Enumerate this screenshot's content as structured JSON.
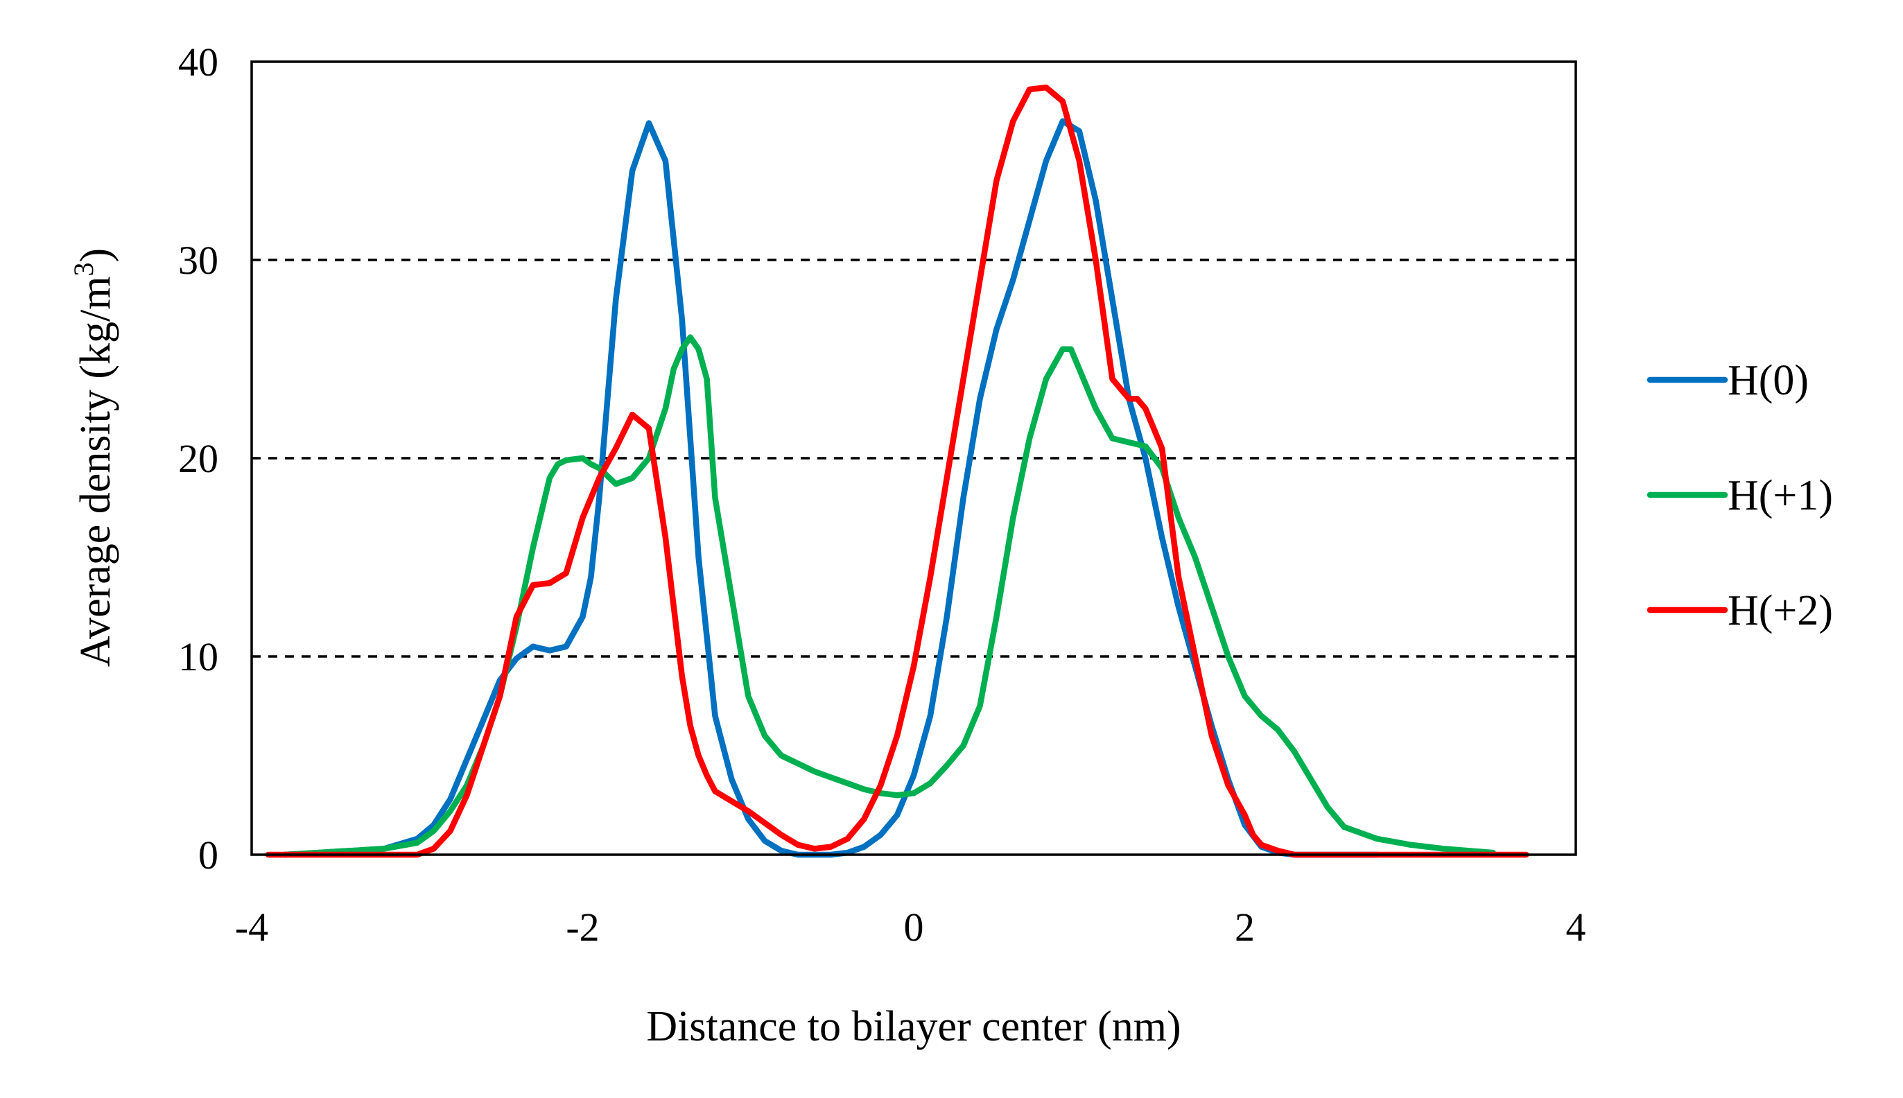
{
  "chart_data": {
    "type": "line",
    "title": "",
    "xlabel": "Distance to bilayer center (nm)",
    "ylabel": "Average density (kg/m3)",
    "ylabel_parts": {
      "main": "Average density (kg/m",
      "sup": "3",
      "end": ")"
    },
    "xlim": [
      -4,
      4
    ],
    "ylim": [
      0,
      40
    ],
    "xticks": [
      -4,
      -2,
      0,
      2,
      4
    ],
    "yticks": [
      0,
      10,
      20,
      30,
      40
    ],
    "xtick_labels": [
      "-4",
      "-2",
      "0",
      "2",
      "4"
    ],
    "ytick_labels": [
      "0",
      "10",
      "20",
      "30",
      "40"
    ],
    "grid": "horizontal dashed at 10, 20, 30",
    "legend": "right",
    "series": [
      {
        "name": "H(0)",
        "color": "#0070C0",
        "x": [
          -3.8,
          -3.4,
          -3.2,
          -3.0,
          -2.9,
          -2.8,
          -2.7,
          -2.6,
          -2.5,
          -2.4,
          -2.3,
          -2.2,
          -2.1,
          -2.0,
          -1.95,
          -1.9,
          -1.85,
          -1.8,
          -1.7,
          -1.6,
          -1.5,
          -1.4,
          -1.35,
          -1.3,
          -1.25,
          -1.2,
          -1.1,
          -1.0,
          -0.9,
          -0.8,
          -0.7,
          -0.6,
          -0.5,
          -0.4,
          -0.3,
          -0.2,
          -0.1,
          0.0,
          0.1,
          0.2,
          0.3,
          0.4,
          0.5,
          0.6,
          0.7,
          0.8,
          0.9,
          1.0,
          1.1,
          1.2,
          1.3,
          1.4,
          1.5,
          1.6,
          1.7,
          1.8,
          1.9,
          2.0,
          2.1,
          2.2,
          2.3,
          2.4,
          2.5,
          2.6,
          2.7,
          2.8
        ],
        "values": [
          0.0,
          0.2,
          0.3,
          0.8,
          1.5,
          2.8,
          4.8,
          6.8,
          8.8,
          9.9,
          10.5,
          10.3,
          10.5,
          12.0,
          14.0,
          18.0,
          23.0,
          28.0,
          34.5,
          36.9,
          35.0,
          27.0,
          21.0,
          15.0,
          11.0,
          7.0,
          3.8,
          1.8,
          0.7,
          0.2,
          0.0,
          0.0,
          0.0,
          0.1,
          0.4,
          1.0,
          2.0,
          4.0,
          7.0,
          12.0,
          18.0,
          23.0,
          26.5,
          29.0,
          32.0,
          35.0,
          37.0,
          36.5,
          33.0,
          28.0,
          23.0,
          20.0,
          16.0,
          12.5,
          9.5,
          6.5,
          3.8,
          1.5,
          0.4,
          0.1,
          0.0,
          0.0,
          0.0,
          0.0,
          0.0,
          0.0
        ]
      },
      {
        "name": "H(+1)",
        "color": "#00B050",
        "x": [
          -3.8,
          -3.4,
          -3.2,
          -3.0,
          -2.9,
          -2.8,
          -2.7,
          -2.6,
          -2.5,
          -2.4,
          -2.3,
          -2.2,
          -2.15,
          -2.1,
          -2.0,
          -1.95,
          -1.9,
          -1.8,
          -1.7,
          -1.6,
          -1.5,
          -1.45,
          -1.4,
          -1.35,
          -1.3,
          -1.25,
          -1.2,
          -1.1,
          -1.0,
          -0.9,
          -0.8,
          -0.7,
          -0.6,
          -0.5,
          -0.4,
          -0.3,
          -0.2,
          -0.1,
          0.0,
          0.1,
          0.2,
          0.3,
          0.4,
          0.5,
          0.6,
          0.7,
          0.8,
          0.9,
          0.95,
          1.0,
          1.1,
          1.2,
          1.3,
          1.4,
          1.5,
          1.6,
          1.7,
          1.8,
          1.9,
          2.0,
          2.1,
          2.2,
          2.3,
          2.4,
          2.5,
          2.6,
          2.8,
          3.0,
          3.2,
          3.5
        ],
        "values": [
          0.0,
          0.2,
          0.3,
          0.6,
          1.2,
          2.2,
          3.5,
          5.5,
          8.0,
          11.5,
          15.5,
          19.0,
          19.7,
          19.9,
          20.0,
          19.7,
          19.5,
          18.7,
          19.0,
          20.0,
          22.5,
          24.5,
          25.5,
          26.1,
          25.5,
          24.0,
          18.0,
          13.0,
          8.0,
          6.0,
          5.0,
          4.6,
          4.2,
          3.9,
          3.6,
          3.3,
          3.1,
          3.0,
          3.1,
          3.6,
          4.5,
          5.5,
          7.5,
          12.0,
          17.0,
          21.0,
          24.0,
          25.5,
          25.5,
          24.5,
          22.5,
          21.0,
          20.8,
          20.6,
          19.5,
          17.0,
          15.0,
          12.5,
          10.0,
          8.0,
          7.0,
          6.3,
          5.2,
          3.8,
          2.4,
          1.4,
          0.8,
          0.5,
          0.3,
          0.1
        ]
      },
      {
        "name": "H(+2)",
        "color": "#FF0000",
        "x": [
          -3.9,
          -3.6,
          -3.3,
          -3.0,
          -2.9,
          -2.8,
          -2.7,
          -2.6,
          -2.5,
          -2.4,
          -2.3,
          -2.2,
          -2.1,
          -2.0,
          -1.9,
          -1.8,
          -1.7,
          -1.6,
          -1.5,
          -1.4,
          -1.35,
          -1.3,
          -1.25,
          -1.2,
          -1.1,
          -1.0,
          -0.9,
          -0.8,
          -0.7,
          -0.6,
          -0.5,
          -0.4,
          -0.3,
          -0.2,
          -0.1,
          0.0,
          0.1,
          0.2,
          0.3,
          0.4,
          0.5,
          0.6,
          0.7,
          0.8,
          0.9,
          1.0,
          1.1,
          1.2,
          1.3,
          1.35,
          1.4,
          1.5,
          1.6,
          1.7,
          1.8,
          1.9,
          2.0,
          2.05,
          2.1,
          2.2,
          2.3,
          2.4,
          2.5,
          2.6,
          2.7,
          2.9,
          3.2,
          3.7
        ],
        "values": [
          0.0,
          0.0,
          0.0,
          0.0,
          0.3,
          1.2,
          3.0,
          5.5,
          8.0,
          12.0,
          13.6,
          13.7,
          14.2,
          17.0,
          19.0,
          20.5,
          22.2,
          21.5,
          16.0,
          9.0,
          6.5,
          5.0,
          4.0,
          3.2,
          2.7,
          2.2,
          1.6,
          1.0,
          0.5,
          0.3,
          0.4,
          0.8,
          1.8,
          3.5,
          6.0,
          9.5,
          14.0,
          19.0,
          24.0,
          29.0,
          34.0,
          37.0,
          38.6,
          38.7,
          38.0,
          35.0,
          30.0,
          24.0,
          23.0,
          23.0,
          22.5,
          20.5,
          14.0,
          10.0,
          6.0,
          3.5,
          2.0,
          1.0,
          0.5,
          0.2,
          0.0,
          0.0,
          0.0,
          0.0,
          0.0,
          0.0,
          0.0,
          0.0
        ]
      }
    ]
  }
}
